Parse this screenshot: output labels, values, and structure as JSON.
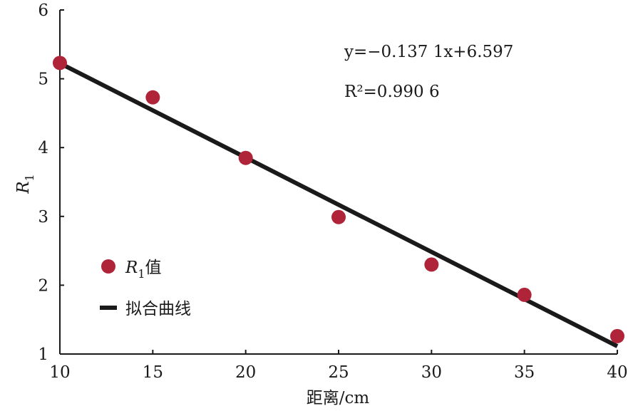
{
  "chart_data": {
    "type": "scatter",
    "xlabel": "距离/cm",
    "ylabel_main": "R",
    "ylabel_sub": "1",
    "xlim": [
      10,
      40
    ],
    "ylim": [
      1,
      6
    ],
    "xticks": [
      10,
      15,
      20,
      25,
      30,
      35,
      40
    ],
    "yticks": [
      1,
      2,
      3,
      4,
      5,
      6
    ],
    "grid": false,
    "legend_position": "left",
    "points": [
      {
        "x": 10,
        "y": 5.23
      },
      {
        "x": 15,
        "y": 4.73
      },
      {
        "x": 20,
        "y": 3.85
      },
      {
        "x": 25,
        "y": 2.99
      },
      {
        "x": 30,
        "y": 2.3
      },
      {
        "x": 35,
        "y": 1.86
      },
      {
        "x": 40,
        "y": 1.26
      }
    ],
    "fit_line": {
      "slope": -0.1371,
      "intercept": 6.597,
      "x_range": [
        10,
        40
      ]
    },
    "annotations": {
      "equation": "y=−0.137 1x+6.597",
      "r_squared": "R²=0.990 6"
    },
    "legend": [
      {
        "label_main": "R",
        "label_sub": "1",
        "label_suffix": "值",
        "marker": "point"
      },
      {
        "label": "拟合曲线",
        "marker": "line"
      }
    ],
    "colors": {
      "point": "#b0243a",
      "line": "#1a1a1a",
      "axis": "#1a1a1a"
    }
  }
}
